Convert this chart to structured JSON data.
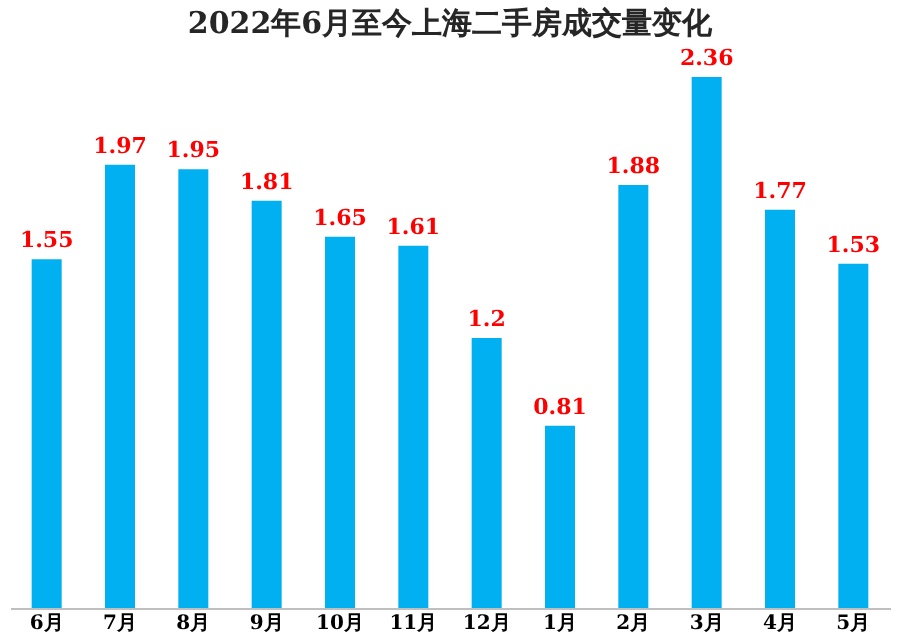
{
  "chart_data": {
    "type": "bar",
    "title": "2022年6月至今上海二手房成交量变化",
    "categories": [
      "6月",
      "7月",
      "8月",
      "9月",
      "10月",
      "11月",
      "12月",
      "1月",
      "2月",
      "3月",
      "4月",
      "5月"
    ],
    "values": [
      1.55,
      1.97,
      1.95,
      1.81,
      1.65,
      1.61,
      1.2,
      0.81,
      1.88,
      2.36,
      1.77,
      1.53
    ],
    "color": "#00b0f0",
    "data_labels": true,
    "grid": false,
    "tick_labels": "x"
  }
}
